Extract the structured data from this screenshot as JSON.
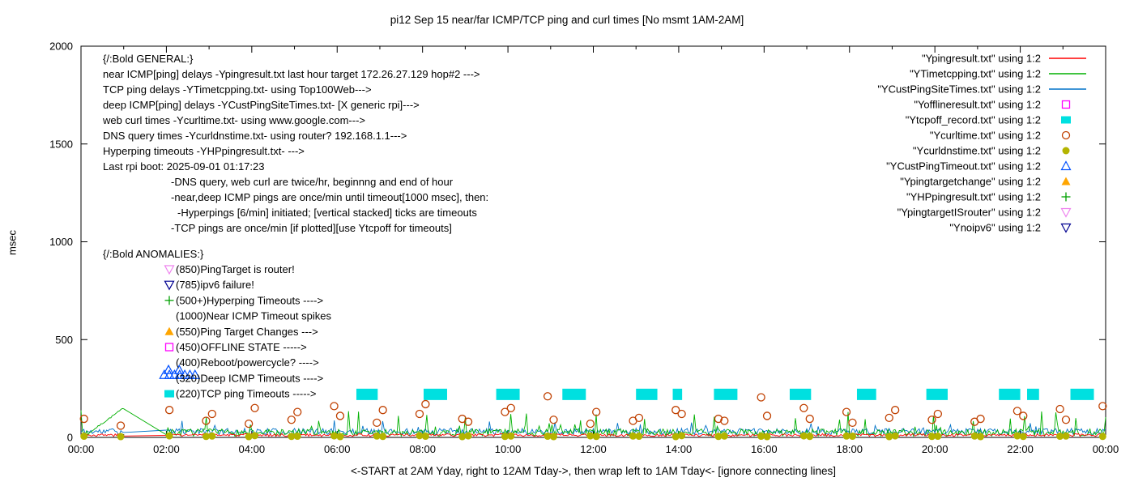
{
  "chart_data": {
    "type": "line",
    "title": "pi12 Sep 15  near/far ICMP/TCP ping and curl times [No msmt 1AM-2AM]",
    "xlabel": "<-START at 2AM Yday, right to 12AM Tday->, then wrap left to 1AM Tday<- [ignore connecting lines]",
    "ylabel": "msec",
    "ylim": [
      0,
      2000
    ],
    "xlim_hours": [
      0,
      24
    ],
    "y_ticks": [
      0,
      500,
      1000,
      1500,
      2000
    ],
    "x_ticks": [
      "00:00",
      "02:00",
      "04:00",
      "06:00",
      "08:00",
      "10:00",
      "12:00",
      "14:00",
      "16:00",
      "18:00",
      "20:00",
      "22:00",
      "00:00"
    ],
    "grid": false,
    "legend_position": "top-right",
    "no_measurement_window": "1AM-2AM",
    "colors": {
      "near_icmp": "#ff0000",
      "tcp_ping": "#00b000",
      "deep_icmp": "#0072c8",
      "offline": "#ff00ff",
      "tcp_off": "#00e0e0",
      "curl": "#c04000",
      "dns": "#b4b400",
      "deep_timeout": "#0050ff",
      "target_change": "#ffa500",
      "hyperping": "#00a000",
      "target_is_router": "#ee82ee",
      "noipv6": "#000090",
      "axis": "#000000"
    },
    "legend": [
      {
        "label": "\"Ypingresult.txt\" using 1:2",
        "marker": "line",
        "color_key": "near_icmp"
      },
      {
        "label": "\"YTimetcpping.txt\" using 1:2",
        "marker": "line",
        "color_key": "tcp_ping"
      },
      {
        "label": "\"YCustPingSiteTimes.txt\" using 1:2",
        "marker": "line",
        "color_key": "deep_icmp"
      },
      {
        "label": "\"Yofflineresult.txt\" using 1:2",
        "marker": "square-open",
        "color_key": "offline"
      },
      {
        "label": "\"Ytcpoff_record.txt\" using 1:2",
        "marker": "square-filled",
        "color_key": "tcp_off"
      },
      {
        "label": "\"Ycurltime.txt\" using 1:2",
        "marker": "circle-open",
        "color_key": "curl"
      },
      {
        "label": "\"Ycurldnstime.txt\" using 1:2",
        "marker": "circle-filled",
        "color_key": "dns"
      },
      {
        "label": "\"YCustPingTimeout.txt\" using 1:2",
        "marker": "triangle-up-open",
        "color_key": "deep_timeout"
      },
      {
        "label": "\"Ypingtargetchange\" using 1:2",
        "marker": "triangle-up-filled",
        "color_key": "target_change"
      },
      {
        "label": "\"YHPpingresult.txt\" using 1:2",
        "marker": "plus",
        "color_key": "hyperping"
      },
      {
        "label": "\"YpingtargetISrouter\" using 1:2",
        "marker": "triangle-down-open",
        "color_key": "target_is_router"
      },
      {
        "label": "\"Ynoipv6\" using 1:2",
        "marker": "triangle-down-open",
        "color_key": "noipv6"
      }
    ],
    "annotations": {
      "general": {
        "header": "{/:Bold GENERAL:}",
        "lines": [
          {
            "text": "near ICMP[ping] delays -Ypingresult.txt last hour target 172.26.27.129 hop#2 --->",
            "indent": 0
          },
          {
            "text": "TCP ping delays -YTimetcpping.txt- using Top100Web--->",
            "indent": 0
          },
          {
            "text": "deep ICMP[ping] delays -YCustPingSiteTimes.txt- [X generic rpi]--->",
            "indent": 0
          },
          {
            "text": "web curl times -Ycurltime.txt- using www.google.com--->",
            "indent": 0
          },
          {
            "text": "DNS query times -Ycurldnstime.txt- using router? 192.168.1.1--->",
            "indent": 0
          },
          {
            "text": "Hyperping timeouts -YHPpingresult.txt- --->",
            "indent": 0
          },
          {
            "text": "Last rpi boot: 2025-09-01 01:17:23",
            "indent": 0
          },
          {
            "text": "-DNS query, web curl are twice/hr, beginnng and end of hour",
            "indent": 1
          },
          {
            "text": "-near,deep ICMP pings are once/min until timeout[1000 msec], then:",
            "indent": 1
          },
          {
            "text": "-Hyperpings [6/min] initiated; [vertical stacked] ticks are timeouts",
            "indent": 2
          },
          {
            "text": "-TCP pings are once/min [if plotted][use Ytcpoff for timeouts]",
            "indent": 1
          }
        ]
      },
      "anomalies": {
        "header": "{/:Bold ANOMALIES:}",
        "lines": [
          {
            "text": "(850)PingTarget is router!",
            "marker": "triangle-down-open",
            "color_key": "target_is_router"
          },
          {
            "text": "(785)ipv6 failure!",
            "marker": "triangle-down-open",
            "color_key": "noipv6"
          },
          {
            "text": "(500+)Hyperping Timeouts ---->",
            "marker": "plus",
            "color_key": "hyperping"
          },
          {
            "text": "(1000)Near ICMP Timeout spikes"
          },
          {
            "text": "(550)Ping Target Changes --->",
            "marker": "triangle-up-filled",
            "color_key": "target_change"
          },
          {
            "text": "(450)OFFLINE STATE ----->",
            "marker": "square-open",
            "color_key": "offline"
          },
          {
            "text": "(400)Reboot/powercycle? ---->"
          },
          {
            "text": "(320)Deep ICMP Timeouts ---->"
          },
          {
            "text": "(220)TCP ping Timeouts ----->",
            "marker": "square-filled",
            "color_key": "tcp_off"
          }
        ]
      }
    },
    "series": {
      "near_icmp_line": {
        "file": "Ypingresult.txt",
        "kind": "line",
        "color_key": "near_icmp",
        "baseline_ms": 12,
        "noise_ms": 7
      },
      "tcp_ping_line": {
        "file": "YTimetcpping.txt",
        "kind": "line",
        "color_key": "tcp_ping",
        "baseline_ms": 25,
        "noise_ms": 18,
        "spike_ms": 140,
        "spike_prob": 0.1,
        "ramp": {
          "t0": 0.2,
          "t1": 1.0,
          "v1": 150
        }
      },
      "deep_icmp_line": {
        "file": "YCustPingSiteTimes.txt",
        "kind": "line",
        "color_key": "deep_icmp",
        "baseline_ms": 30,
        "noise_ms": 16,
        "spike_ms": 90,
        "spike_prob": 0.03
      },
      "curl_times": {
        "file": "Ycurltime.txt",
        "kind": "scatter",
        "color_key": "curl",
        "points": [
          [
            0.07,
            95
          ],
          [
            0.93,
            60
          ],
          [
            2.07,
            140
          ],
          [
            2.93,
            85
          ],
          [
            3.07,
            120
          ],
          [
            3.93,
            70
          ],
          [
            4.07,
            150
          ],
          [
            4.93,
            90
          ],
          [
            5.07,
            130
          ],
          [
            5.93,
            160
          ],
          [
            6.07,
            110
          ],
          [
            6.93,
            75
          ],
          [
            7.07,
            140
          ],
          [
            7.93,
            120
          ],
          [
            8.07,
            170
          ],
          [
            8.93,
            95
          ],
          [
            9.07,
            80
          ],
          [
            9.93,
            130
          ],
          [
            10.07,
            150
          ],
          [
            10.93,
            210
          ],
          [
            11.07,
            90
          ],
          [
            11.93,
            70
          ],
          [
            12.07,
            130
          ],
          [
            12.93,
            85
          ],
          [
            13.07,
            100
          ],
          [
            13.93,
            140
          ],
          [
            14.07,
            120
          ],
          [
            14.93,
            95
          ],
          [
            15.07,
            85
          ],
          [
            15.93,
            205
          ],
          [
            16.07,
            110
          ],
          [
            16.93,
            150
          ],
          [
            17.07,
            95
          ],
          [
            17.93,
            130
          ],
          [
            18.07,
            75
          ],
          [
            18.93,
            100
          ],
          [
            19.07,
            140
          ],
          [
            19.93,
            90
          ],
          [
            20.07,
            120
          ],
          [
            20.93,
            80
          ],
          [
            21.07,
            95
          ],
          [
            21.93,
            135
          ],
          [
            22.07,
            110
          ],
          [
            22.93,
            145
          ],
          [
            23.07,
            90
          ],
          [
            23.93,
            160
          ]
        ]
      },
      "dns_times": {
        "file": "Ycurldnstime.txt",
        "kind": "scatter",
        "color_key": "dns",
        "points": [
          [
            0.07,
            6
          ],
          [
            0.93,
            4
          ],
          [
            2.07,
            8
          ],
          [
            2.93,
            5
          ],
          [
            3.07,
            7
          ],
          [
            3.93,
            4
          ],
          [
            4.07,
            9
          ],
          [
            4.93,
            5
          ],
          [
            5.07,
            6
          ],
          [
            5.93,
            8
          ],
          [
            6.07,
            4
          ],
          [
            6.93,
            7
          ],
          [
            7.07,
            5
          ],
          [
            7.93,
            9
          ],
          [
            8.07,
            6
          ],
          [
            8.93,
            4
          ],
          [
            9.07,
            8
          ],
          [
            9.93,
            5
          ],
          [
            10.07,
            7
          ],
          [
            10.93,
            6
          ],
          [
            11.07,
            4
          ],
          [
            11.93,
            8
          ],
          [
            12.07,
            5
          ],
          [
            12.93,
            7
          ],
          [
            13.07,
            6
          ],
          [
            13.93,
            4
          ],
          [
            14.07,
            9
          ],
          [
            14.93,
            5
          ],
          [
            15.07,
            7
          ],
          [
            15.93,
            6
          ],
          [
            16.07,
            4
          ],
          [
            16.93,
            8
          ],
          [
            17.07,
            5
          ],
          [
            17.93,
            7
          ],
          [
            18.07,
            6
          ],
          [
            18.93,
            4
          ],
          [
            19.07,
            8
          ],
          [
            19.93,
            5
          ],
          [
            20.07,
            6
          ],
          [
            20.93,
            7
          ],
          [
            21.07,
            4
          ],
          [
            21.93,
            8
          ],
          [
            22.07,
            5
          ],
          [
            22.93,
            6
          ],
          [
            23.07,
            7
          ],
          [
            23.93,
            5
          ]
        ]
      },
      "tcp_off_marks": {
        "file": "Ytcpoff_record.txt",
        "kind": "bar",
        "color_key": "tcp_off",
        "value_ms": 220,
        "bars": [
          [
            6.7,
            0.5
          ],
          [
            8.3,
            0.55
          ],
          [
            10.0,
            0.55
          ],
          [
            11.55,
            0.55
          ],
          [
            13.25,
            0.5
          ],
          [
            13.97,
            0.22
          ],
          [
            15.1,
            0.55
          ],
          [
            16.85,
            0.5
          ],
          [
            18.4,
            0.45
          ],
          [
            20.05,
            0.5
          ],
          [
            21.75,
            0.5
          ],
          [
            22.3,
            0.28
          ],
          [
            23.45,
            0.55
          ]
        ]
      },
      "deep_timeouts": {
        "file": "YCustPingTimeout.txt",
        "kind": "scatter",
        "color_key": "deep_timeout",
        "points": [
          [
            1.95,
            320
          ],
          [
            2.07,
            320
          ],
          [
            2.19,
            320
          ],
          [
            2.31,
            320
          ],
          [
            2.43,
            320
          ],
          [
            2.55,
            320
          ],
          [
            2.67,
            320
          ],
          [
            2.05,
            345
          ],
          [
            2.3,
            345
          ]
        ]
      }
    }
  }
}
